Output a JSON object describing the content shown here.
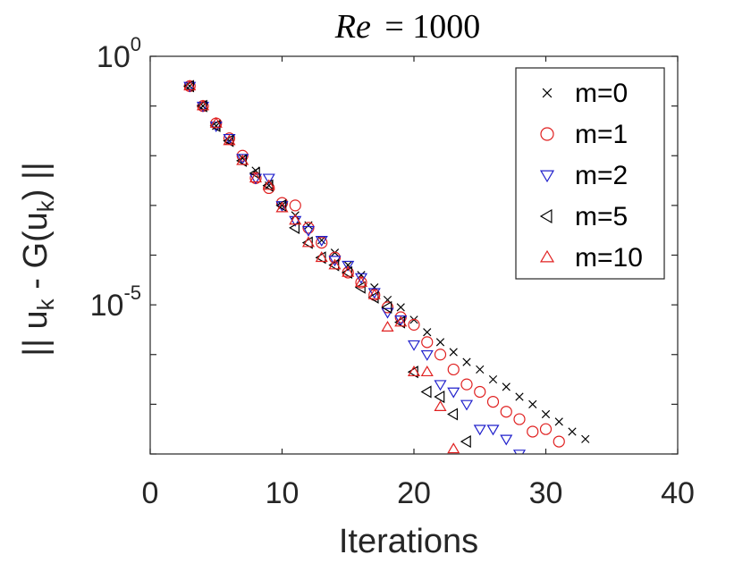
{
  "chart_data": {
    "type": "scatter",
    "title_lhs": "Re",
    "title_rhs": "= 1000",
    "xlabel": "Iterations",
    "ylabel_parts": [
      "|| u",
      "k",
      " - G(u",
      "k",
      ") ||"
    ],
    "xlim": [
      0,
      40
    ],
    "ylim_log10": [
      -8.0,
      0
    ],
    "xticks": [
      0,
      10,
      20,
      30,
      40
    ],
    "xtick_labels": [
      "0",
      "10",
      "20",
      "30",
      "40"
    ],
    "yticks": [
      {
        "value": 0,
        "base": "10",
        "exp": "0"
      },
      {
        "value": -5,
        "base": "10",
        "exp": "-5"
      }
    ],
    "grid": false,
    "legend_position": "top-right",
    "series": [
      {
        "name": "m=0",
        "marker": "x",
        "color": "#000000",
        "x": [
          3,
          4,
          5,
          6,
          7,
          8,
          9,
          10,
          11,
          12,
          13,
          14,
          15,
          16,
          17,
          18,
          19,
          20,
          21,
          22,
          23,
          24,
          25,
          26,
          27,
          28,
          29,
          30,
          31,
          32,
          33
        ],
        "y": [
          -0.6,
          -1.0,
          -1.4,
          -1.7,
          -2.05,
          -2.3,
          -2.6,
          -3.0,
          -3.2,
          -3.4,
          -3.7,
          -3.95,
          -4.2,
          -4.4,
          -4.65,
          -4.9,
          -5.05,
          -5.3,
          -5.55,
          -5.75,
          -5.95,
          -6.15,
          -6.3,
          -6.5,
          -6.65,
          -6.85,
          -7.0,
          -7.2,
          -7.35,
          -7.55,
          -7.7
        ]
      },
      {
        "name": "m=1",
        "marker": "circle",
        "color": "#e02020",
        "x": [
          3,
          4,
          5,
          6,
          7,
          8,
          9,
          10,
          11,
          12,
          13,
          14,
          15,
          16,
          17,
          18,
          19,
          20,
          21,
          22,
          23,
          24,
          25,
          26,
          27,
          28,
          29,
          30,
          31
        ],
        "y": [
          -0.6,
          -1.0,
          -1.35,
          -1.65,
          -2.0,
          -2.45,
          -2.65,
          -2.95,
          -3.0,
          -3.45,
          -3.75,
          -4.05,
          -4.35,
          -4.55,
          -4.8,
          -5.05,
          -5.25,
          -5.4,
          -5.75,
          -6.0,
          -6.3,
          -6.6,
          -6.75,
          -6.95,
          -7.15,
          -7.3,
          -7.55,
          -7.5,
          -7.75
        ]
      },
      {
        "name": "m=2",
        "marker": "triangle-down",
        "color": "#2020cc",
        "x": [
          3,
          4,
          5,
          6,
          7,
          8,
          9,
          10,
          11,
          12,
          13,
          14,
          15,
          16,
          17,
          18,
          19,
          20,
          21,
          22,
          23,
          24,
          25,
          26,
          27,
          28
        ],
        "y": [
          -0.6,
          -1.0,
          -1.4,
          -1.65,
          -2.05,
          -2.45,
          -2.45,
          -3.0,
          -3.3,
          -3.5,
          -3.7,
          -4.1,
          -4.2,
          -4.45,
          -4.75,
          -5.15,
          -5.3,
          -5.8,
          -6.0,
          -6.6,
          -6.75,
          -7.0,
          -7.5,
          -7.5,
          -7.7,
          -8.0
        ]
      },
      {
        "name": "m=5",
        "marker": "triangle-left",
        "color": "#000000",
        "x": [
          3,
          4,
          5,
          6,
          7,
          8,
          9,
          10,
          11,
          12,
          13,
          14,
          15,
          16,
          17,
          18,
          19,
          20,
          21,
          22,
          23,
          24
        ],
        "y": [
          -0.6,
          -1.0,
          -1.4,
          -1.7,
          -2.1,
          -2.35,
          -2.6,
          -3.0,
          -3.45,
          -3.75,
          -4.05,
          -4.2,
          -4.35,
          -4.65,
          -4.85,
          -5.05,
          -5.35,
          -6.35,
          -6.75,
          -6.85,
          -7.2,
          -7.75
        ]
      },
      {
        "name": "m=10",
        "marker": "triangle-up",
        "color": "#e02020",
        "x": [
          3,
          4,
          5,
          6,
          7,
          8,
          9,
          10,
          11,
          12,
          13,
          14,
          15,
          16,
          17,
          18,
          19,
          20,
          21,
          22,
          23
        ],
        "y": [
          -0.6,
          -1.0,
          -1.35,
          -1.7,
          -2.1,
          -2.45,
          -2.6,
          -3.05,
          -3.3,
          -3.75,
          -4.05,
          -4.2,
          -4.35,
          -4.55,
          -4.8,
          -5.45,
          -5.35,
          -6.35,
          -6.35,
          -7.05,
          -7.9
        ]
      }
    ]
  }
}
